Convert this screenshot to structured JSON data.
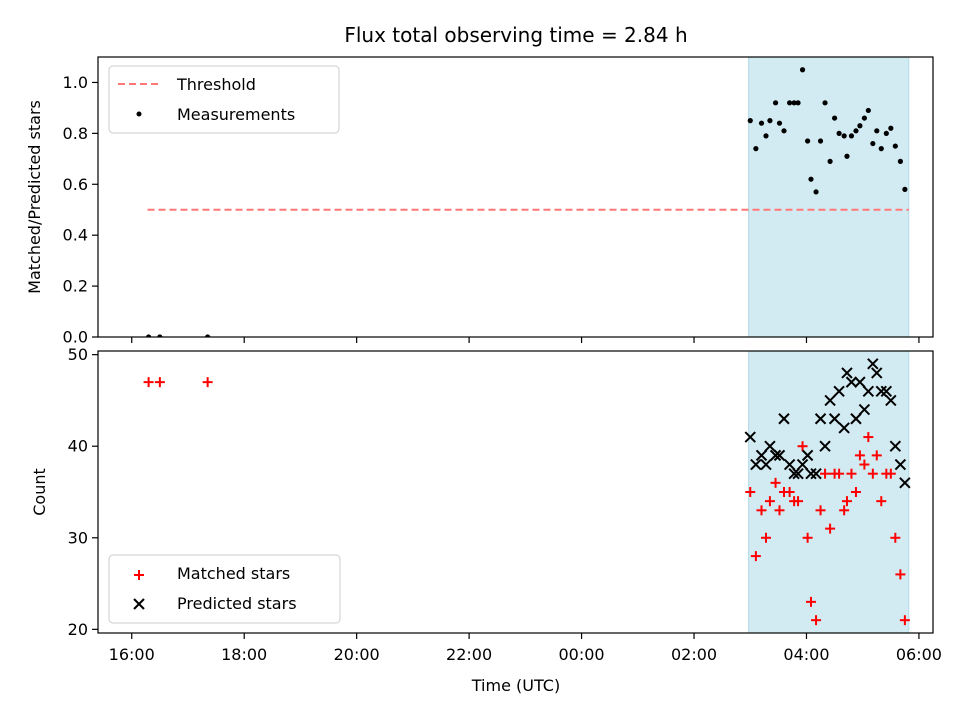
{
  "chart_data": {
    "title": "Flux total observing time = 2.84 h",
    "xlabel": "Time (UTC)",
    "x_tick_labels": [
      "16:00",
      "18:00",
      "20:00",
      "22:00",
      "00:00",
      "02:00",
      "04:00",
      "06:00"
    ],
    "x_ticks_hours": [
      16,
      18,
      20,
      22,
      24,
      26,
      28,
      30
    ],
    "x_range_hours": [
      15.4,
      30.25
    ],
    "shaded_span_hours": [
      26.97,
      29.82
    ],
    "shade_color": "#add8e6",
    "subplots": [
      {
        "type": "scatter",
        "ylabel": "Matched/Predicted stars",
        "ylim": [
          0,
          1.1
        ],
        "y_ticks": [
          0.0,
          0.2,
          0.4,
          0.6,
          0.8,
          1.0
        ],
        "y_tick_labels": [
          "0.0",
          "0.2",
          "0.4",
          "0.6",
          "0.8",
          "1.0"
        ],
        "legend_position": "upper left",
        "threshold": {
          "name": "Threshold",
          "y": 0.5,
          "x_start": 16.28,
          "x_end": 29.82,
          "color": "#ff7777",
          "style": "dashed"
        },
        "series": [
          {
            "name": "Measurements",
            "marker": "dot",
            "color": "#000000",
            "points": [
              [
                16.3,
                0.0
              ],
              [
                16.5,
                0.0
              ],
              [
                17.35,
                0.0
              ],
              [
                27.0,
                0.85
              ],
              [
                27.1,
                0.74
              ],
              [
                27.2,
                0.84
              ],
              [
                27.28,
                0.79
              ],
              [
                27.35,
                0.85
              ],
              [
                27.45,
                0.92
              ],
              [
                27.52,
                0.84
              ],
              [
                27.6,
                0.81
              ],
              [
                27.7,
                0.92
              ],
              [
                27.78,
                0.92
              ],
              [
                27.85,
                0.92
              ],
              [
                27.93,
                1.05
              ],
              [
                28.02,
                0.77
              ],
              [
                28.08,
                0.62
              ],
              [
                28.17,
                0.57
              ],
              [
                28.25,
                0.77
              ],
              [
                28.33,
                0.92
              ],
              [
                28.42,
                0.69
              ],
              [
                28.5,
                0.86
              ],
              [
                28.58,
                0.8
              ],
              [
                28.67,
                0.79
              ],
              [
                28.72,
                0.71
              ],
              [
                28.8,
                0.79
              ],
              [
                28.88,
                0.81
              ],
              [
                28.95,
                0.83
              ],
              [
                29.03,
                0.86
              ],
              [
                29.1,
                0.89
              ],
              [
                29.18,
                0.76
              ],
              [
                29.25,
                0.81
              ],
              [
                29.33,
                0.74
              ],
              [
                29.42,
                0.8
              ],
              [
                29.5,
                0.82
              ],
              [
                29.58,
                0.75
              ],
              [
                29.67,
                0.69
              ],
              [
                29.75,
                0.58
              ]
            ]
          }
        ]
      },
      {
        "type": "scatter",
        "ylabel": "Count",
        "ylim": [
          19.6,
          50.4
        ],
        "y_ticks": [
          20,
          30,
          40,
          50
        ],
        "y_tick_labels": [
          "20",
          "30",
          "40",
          "50"
        ],
        "legend_position": "lower left",
        "series": [
          {
            "name": "Matched stars",
            "marker": "plus",
            "color": "#ff0000",
            "points": [
              [
                16.3,
                47
              ],
              [
                16.5,
                47
              ],
              [
                17.35,
                47
              ],
              [
                27.0,
                35
              ],
              [
                27.1,
                28
              ],
              [
                27.2,
                33
              ],
              [
                27.28,
                30
              ],
              [
                27.35,
                34
              ],
              [
                27.45,
                36
              ],
              [
                27.52,
                33
              ],
              [
                27.6,
                35
              ],
              [
                27.7,
                35
              ],
              [
                27.78,
                34
              ],
              [
                27.85,
                34
              ],
              [
                27.93,
                40
              ],
              [
                28.02,
                30
              ],
              [
                28.08,
                23
              ],
              [
                28.17,
                21
              ],
              [
                28.25,
                33
              ],
              [
                28.33,
                37
              ],
              [
                28.42,
                31
              ],
              [
                28.5,
                37
              ],
              [
                28.58,
                37
              ],
              [
                28.67,
                33
              ],
              [
                28.72,
                34
              ],
              [
                28.8,
                37
              ],
              [
                28.88,
                35
              ],
              [
                28.95,
                39
              ],
              [
                29.03,
                38
              ],
              [
                29.1,
                41
              ],
              [
                29.18,
                37
              ],
              [
                29.25,
                39
              ],
              [
                29.33,
                34
              ],
              [
                29.42,
                37
              ],
              [
                29.5,
                37
              ],
              [
                29.58,
                30
              ],
              [
                29.67,
                26
              ],
              [
                29.75,
                21
              ]
            ]
          },
          {
            "name": "Predicted stars",
            "marker": "x",
            "color": "#000000",
            "points": [
              [
                27.0,
                41
              ],
              [
                27.1,
                38
              ],
              [
                27.2,
                39
              ],
              [
                27.28,
                38
              ],
              [
                27.35,
                40
              ],
              [
                27.45,
                39
              ],
              [
                27.52,
                39
              ],
              [
                27.6,
                43
              ],
              [
                27.7,
                38
              ],
              [
                27.78,
                37
              ],
              [
                27.85,
                37
              ],
              [
                27.93,
                38
              ],
              [
                28.02,
                39
              ],
              [
                28.08,
                37
              ],
              [
                28.17,
                37
              ],
              [
                28.25,
                43
              ],
              [
                28.33,
                40
              ],
              [
                28.42,
                45
              ],
              [
                28.5,
                43
              ],
              [
                28.58,
                46
              ],
              [
                28.67,
                42
              ],
              [
                28.72,
                48
              ],
              [
                28.8,
                47
              ],
              [
                28.88,
                43
              ],
              [
                28.95,
                47
              ],
              [
                29.03,
                44
              ],
              [
                29.1,
                46
              ],
              [
                29.18,
                49
              ],
              [
                29.25,
                48
              ],
              [
                29.33,
                46
              ],
              [
                29.42,
                46
              ],
              [
                29.5,
                45
              ],
              [
                29.58,
                40
              ],
              [
                29.67,
                38
              ],
              [
                29.75,
                36
              ]
            ]
          }
        ]
      }
    ]
  }
}
